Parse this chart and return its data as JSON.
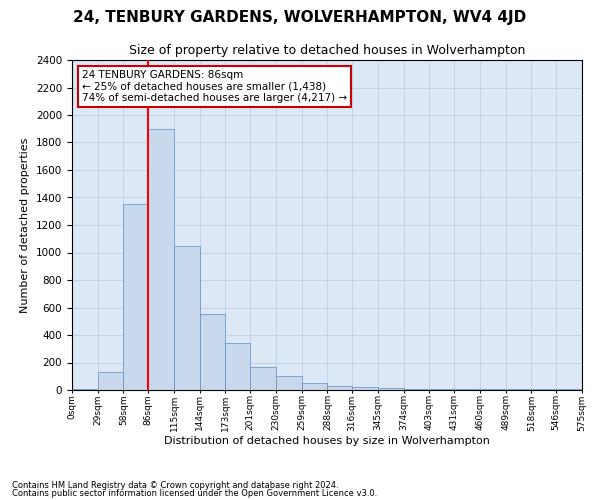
{
  "title": "24, TENBURY GARDENS, WOLVERHAMPTON, WV4 4JD",
  "subtitle": "Size of property relative to detached houses in Wolverhampton",
  "xlabel": "Distribution of detached houses by size in Wolverhampton",
  "ylabel": "Number of detached properties",
  "footnote1": "Contains HM Land Registry data © Crown copyright and database right 2024.",
  "footnote2": "Contains public sector information licensed under the Open Government Licence v3.0.",
  "annotation_line1": "24 TENBURY GARDENS: 86sqm",
  "annotation_line2": "← 25% of detached houses are smaller (1,438)",
  "annotation_line3": "74% of semi-detached houses are larger (4,217) →",
  "bar_color": "#c8d9ed",
  "bar_edge_color": "#5b8ec4",
  "red_line_x": 86,
  "bin_edges": [
    0,
    29,
    58,
    86,
    115,
    144,
    173,
    201,
    230,
    259,
    288,
    316,
    345,
    374,
    403,
    431,
    460,
    489,
    518,
    546,
    575
  ],
  "bar_heights": [
    10,
    130,
    1350,
    1900,
    1050,
    550,
    340,
    170,
    105,
    50,
    30,
    20,
    15,
    10,
    5,
    10,
    5,
    5,
    5,
    10
  ],
  "tick_labels": [
    "0sqm",
    "29sqm",
    "58sqm",
    "86sqm",
    "115sqm",
    "144sqm",
    "173sqm",
    "201sqm",
    "230sqm",
    "259sqm",
    "288sqm",
    "316sqm",
    "345sqm",
    "374sqm",
    "403sqm",
    "431sqm",
    "460sqm",
    "489sqm",
    "518sqm",
    "546sqm",
    "575sqm"
  ],
  "ylim": [
    0,
    2400
  ],
  "yticks": [
    0,
    200,
    400,
    600,
    800,
    1000,
    1200,
    1400,
    1600,
    1800,
    2000,
    2200,
    2400
  ],
  "background_color": "#ffffff",
  "plot_bg_color": "#dce8f5",
  "grid_color": "#b8c8dc",
  "title_fontsize": 11,
  "subtitle_fontsize": 9.5,
  "annotation_box_color": "#ffffff",
  "annotation_box_edge": "#cc0000"
}
